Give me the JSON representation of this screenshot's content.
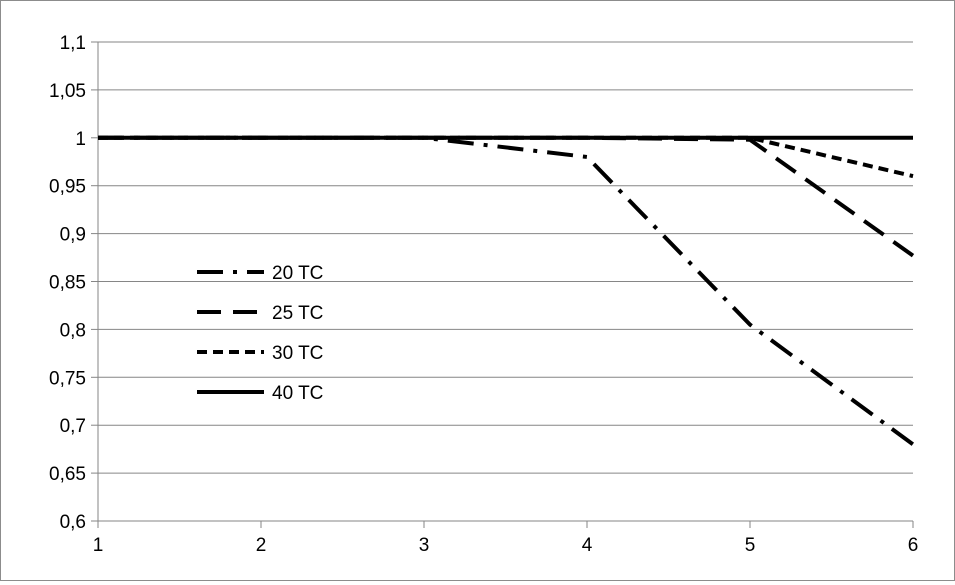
{
  "chart_data": {
    "type": "line",
    "title": "",
    "xlabel": "",
    "ylabel": "",
    "x": [
      1,
      2,
      3,
      4,
      5,
      6
    ],
    "xlim": [
      1,
      6
    ],
    "ylim": [
      0.6,
      1.1
    ],
    "x_tick_labels": [
      "1",
      "2",
      "3",
      "4",
      "5",
      "6"
    ],
    "y_ticks": [
      0.6,
      0.65,
      0.7,
      0.75,
      0.8,
      0.85,
      0.9,
      0.95,
      1,
      1.05,
      1.1
    ],
    "y_tick_labels": [
      "0,6",
      "0,65",
      "0,7",
      "0,75",
      "0,8",
      "0,85",
      "0,9",
      "0,95",
      "1",
      "1,05",
      "1,1"
    ],
    "grid": "horizontal",
    "legend_position": "center-left",
    "series": [
      {
        "name": "20 TC",
        "style": "dash-dot",
        "values": [
          1,
          1,
          1,
          0.98,
          0.805,
          0.68
        ]
      },
      {
        "name": "25 TC",
        "style": "long-dash",
        "values": [
          1,
          1,
          1,
          1,
          0.998,
          0.877
        ]
      },
      {
        "name": "30 TC",
        "style": "short-dash",
        "values": [
          1,
          1,
          1,
          1,
          1,
          0.96
        ]
      },
      {
        "name": "40 TC",
        "style": "solid",
        "values": [
          1,
          1,
          1,
          1,
          1,
          1
        ]
      }
    ],
    "colors": {
      "line": "#000000",
      "grid": "#868686",
      "axis": "#868686",
      "frame": "#8c8c8c"
    }
  }
}
